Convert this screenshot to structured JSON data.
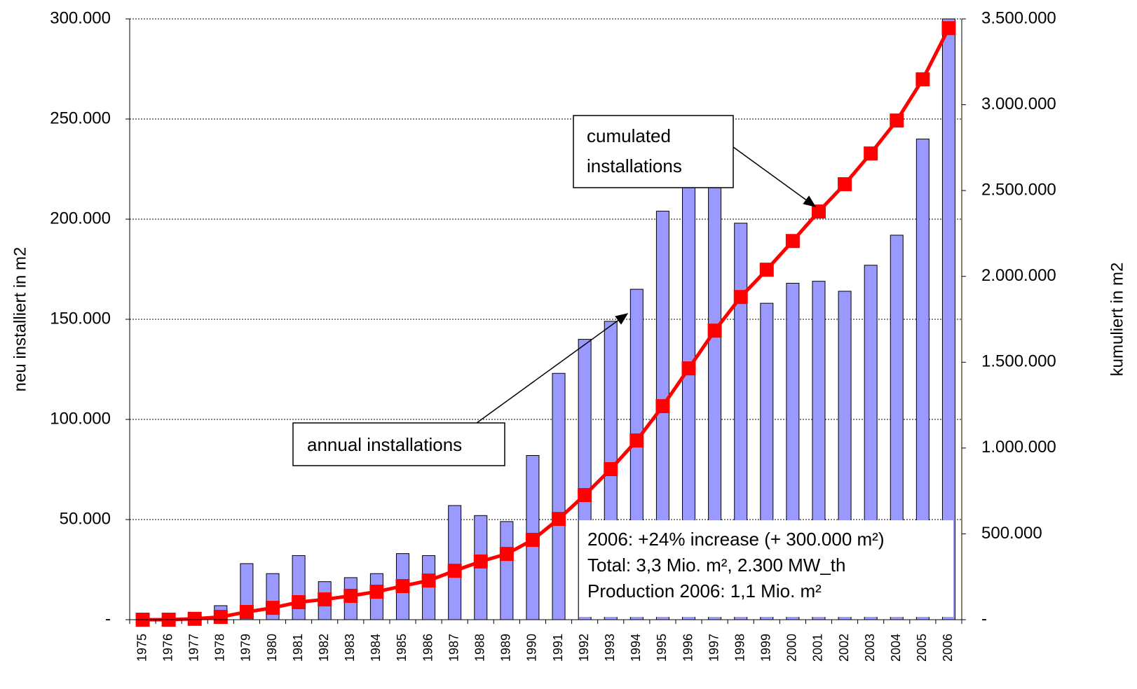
{
  "chart_data": {
    "type": "bar_line",
    "y_label": "neu installiert in m2",
    "y2_label": "kumuliert in m2",
    "categories": [
      "1975",
      "1976",
      "1977",
      "1978",
      "1979",
      "1980",
      "1981",
      "1982",
      "1983",
      "1984",
      "1985",
      "1986",
      "1987",
      "1988",
      "1989",
      "1990",
      "1991",
      "1992",
      "1993",
      "1994",
      "1995",
      "1996",
      "1997",
      "1998",
      "1999",
      "2000",
      "2001",
      "2002",
      "2003",
      "2004",
      "2005",
      "2006"
    ],
    "series": [
      {
        "type": "bar",
        "axis": "y",
        "color": "#9999ff",
        "values": [
          0,
          0,
          0,
          7000,
          28000,
          23000,
          32000,
          19000,
          21000,
          23000,
          33000,
          32000,
          57000,
          52000,
          49000,
          82000,
          123000,
          140000,
          149000,
          165000,
          204000,
          219000,
          220000,
          198000,
          158000,
          168000,
          169000,
          164000,
          177000,
          192000,
          240000,
          300000
        ]
      },
      {
        "type": "line",
        "axis": "y2",
        "color": "#ff0000",
        "values": [
          0,
          0,
          5000,
          16000,
          45000,
          69000,
          102000,
          118000,
          139000,
          163000,
          196000,
          228000,
          285000,
          339000,
          383000,
          465000,
          587000,
          726000,
          877000,
          1044000,
          1244000,
          1464000,
          1684000,
          1880000,
          2039000,
          2206000,
          2378000,
          2537000,
          2716000,
          2908000,
          3148000,
          3446000
        ]
      }
    ],
    "ylim": [
      0,
      300000
    ],
    "yticks": [
      {
        "value": 0,
        "label": "-"
      },
      {
        "value": 50000,
        "label": "50.000"
      },
      {
        "value": 100000,
        "label": "100.000"
      },
      {
        "value": 150000,
        "label": "150.000"
      },
      {
        "value": 200000,
        "label": "200.000"
      },
      {
        "value": 250000,
        "label": "250.000"
      },
      {
        "value": 300000,
        "label": "300.000"
      }
    ],
    "y2lim": [
      0,
      3500000
    ],
    "y2ticks": [
      {
        "value": 0,
        "label": "-"
      },
      {
        "value": 500000,
        "label": "500.000"
      },
      {
        "value": 1000000,
        "label": "1.000.000"
      },
      {
        "value": 1500000,
        "label": "1.500.000"
      },
      {
        "value": 2000000,
        "label": "2.000.000"
      },
      {
        "value": 2500000,
        "label": "2.500.000"
      },
      {
        "value": 3000000,
        "label": "3.000.000"
      },
      {
        "value": 3500000,
        "label": "3.500.000"
      }
    ],
    "grid": true,
    "annotations": [
      {
        "lines": [
          "cumulated",
          "installations"
        ]
      },
      {
        "lines": [
          "annual installations"
        ]
      },
      {
        "lines": [
          "2006: +24% increase (+ 300.000 m²)",
          "Total: 3,3 Mio. m², 2.300 MW_th",
          "Production 2006: 1,1 Mio. m²"
        ]
      }
    ]
  }
}
